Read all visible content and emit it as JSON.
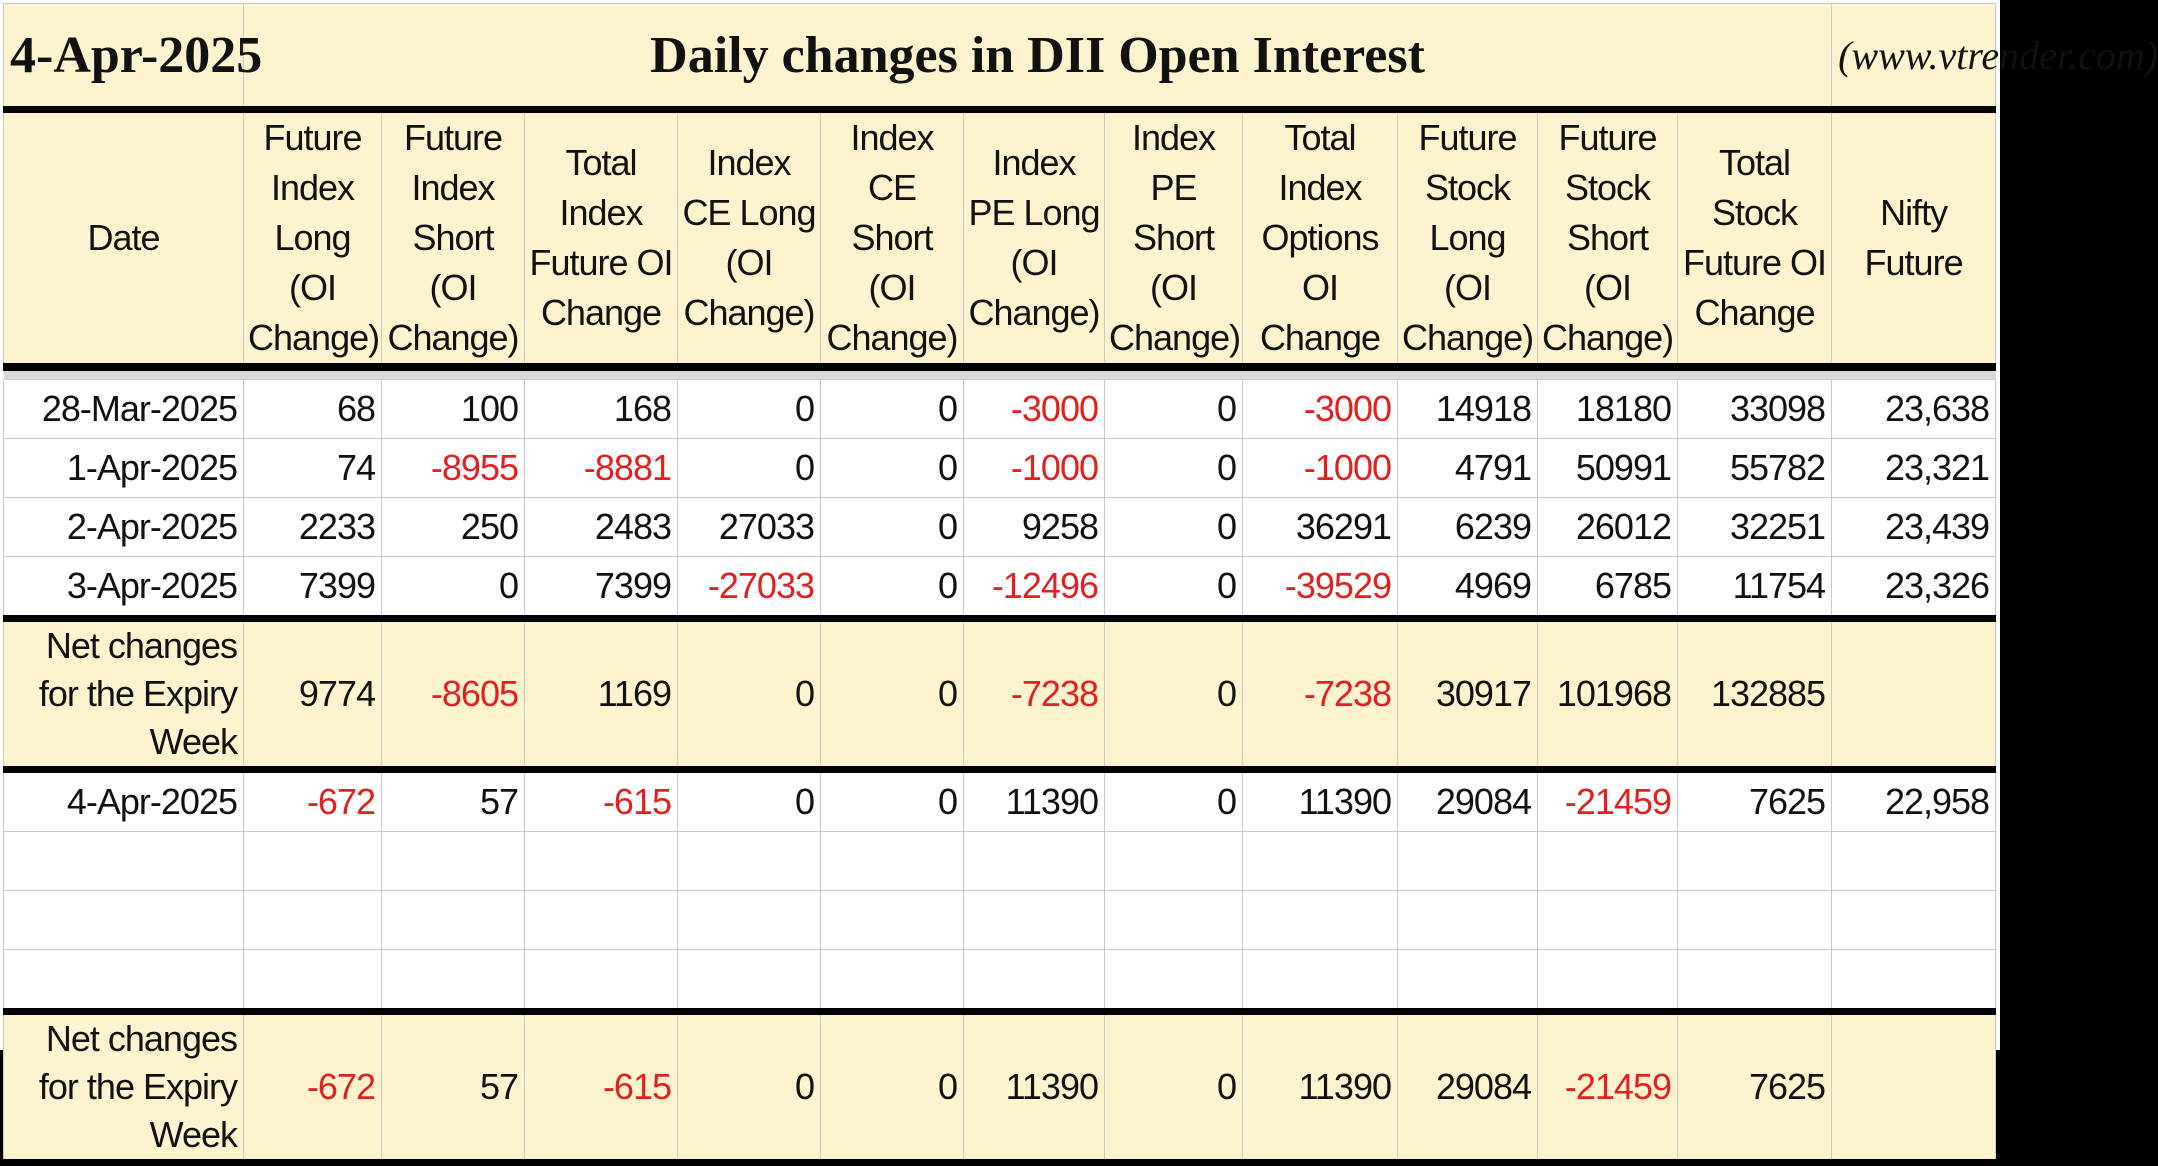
{
  "title": {
    "date": "4-Apr-2025",
    "main": "Daily changes in DII Open Interest",
    "site": "(www.vtrender.com)"
  },
  "columns": [
    "Date",
    "Future Index Long (OI Change)",
    "Future Index Short (OI Change)",
    "Total Index Future OI Change",
    "Index CE Long (OI Change)",
    "Index CE Short (OI Change)",
    "Index PE Long (OI Change)",
    "Index PE Short (OI Change)",
    "Total Index Options OI Change",
    "Future Stock Long (OI Change)",
    "Future Stock Short (OI Change)",
    "Total Stock Future OI Change",
    "Nifty Future"
  ],
  "week1_rows": [
    [
      "28-Mar-2025",
      "68",
      "100",
      "168",
      "0",
      "0",
      "-3000",
      "0",
      "-3000",
      "14918",
      "18180",
      "33098",
      "23,638"
    ],
    [
      "1-Apr-2025",
      "74",
      "-8955",
      "-8881",
      "0",
      "0",
      "-1000",
      "0",
      "-1000",
      "4791",
      "50991",
      "55782",
      "23,321"
    ],
    [
      "2-Apr-2025",
      "2233",
      "250",
      "2483",
      "27033",
      "0",
      "9258",
      "0",
      "36291",
      "6239",
      "26012",
      "32251",
      "23,439"
    ],
    [
      "3-Apr-2025",
      "7399",
      "0",
      "7399",
      "-27033",
      "0",
      "-12496",
      "0",
      "-39529",
      "4969",
      "6785",
      "11754",
      "23,326"
    ]
  ],
  "week1_summary": [
    "Net changes for the Expiry Week",
    "9774",
    "-8605",
    "1169",
    "0",
    "0",
    "-7238",
    "0",
    "-7238",
    "30917",
    "101968",
    "132885",
    ""
  ],
  "week2_rows": [
    [
      "4-Apr-2025",
      "-672",
      "57",
      "-615",
      "0",
      "0",
      "11390",
      "0",
      "11390",
      "29084",
      "-21459",
      "7625",
      "22,958"
    ]
  ],
  "week2_summary": [
    "Net changes for the Expiry Week",
    "-672",
    "57",
    "-615",
    "0",
    "0",
    "11390",
    "0",
    "11390",
    "29084",
    "-21459",
    "7625",
    ""
  ],
  "colors": {
    "header_bg": "#fdf3cf",
    "negative": "#e0211f",
    "border_heavy": "#000000"
  }
}
